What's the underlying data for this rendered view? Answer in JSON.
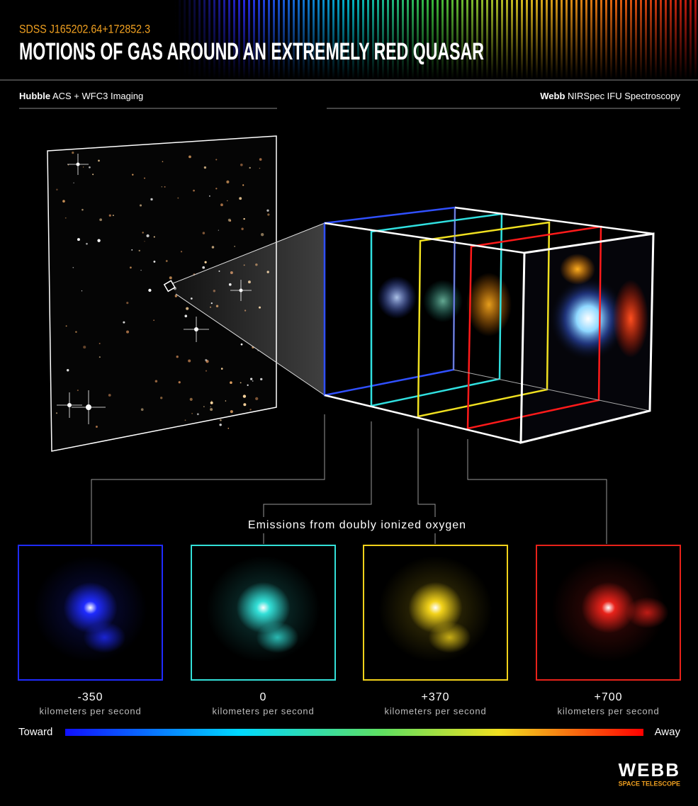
{
  "header": {
    "target": "SDSS J165202.64+172852.3",
    "title": "MOTIONS OF GAS AROUND AN EXTREMELY RED QUASAR"
  },
  "sections": {
    "left": {
      "instrument": "Hubble",
      "detail": "ACS + WFC3 Imaging"
    },
    "right": {
      "instrument": "Webb",
      "detail": "NIRSpec IFU Spectroscopy"
    }
  },
  "caption": "Emissions from doubly ionized oxygen",
  "panels": [
    {
      "velocity": "-350",
      "unit": "kilometers per second",
      "color": "#1f2bff"
    },
    {
      "velocity": "0",
      "unit": "kilometers per second",
      "color": "#33e0d8"
    },
    {
      "velocity": "+370",
      "unit": "kilometers per second",
      "color": "#f2d21a"
    },
    {
      "velocity": "+700",
      "unit": "kilometers per second",
      "color": "#e8221a"
    }
  ],
  "scale": {
    "start": "Toward",
    "end": "Away"
  },
  "logo": {
    "name": "WEBB",
    "subtitle": "SPACE TELESCOPE"
  }
}
